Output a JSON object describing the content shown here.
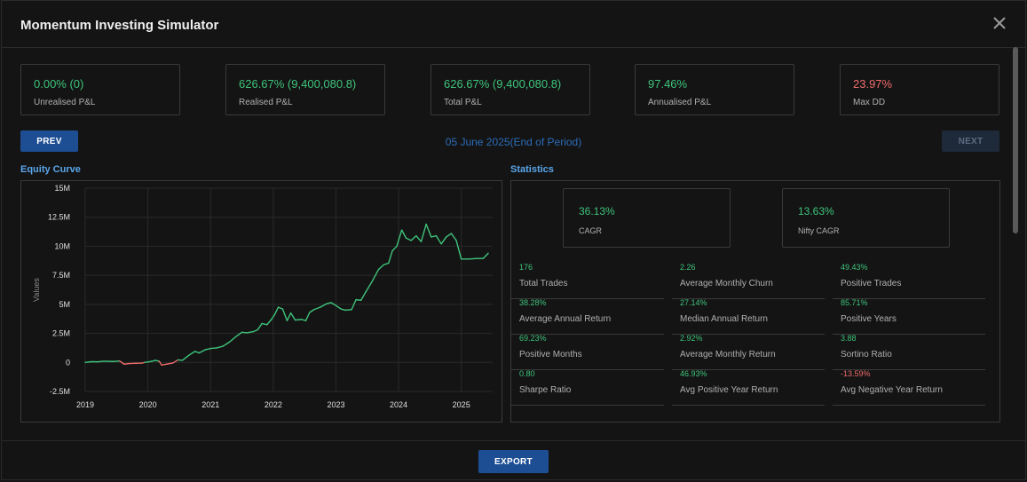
{
  "window": {
    "title": "Momentum Investing Simulator"
  },
  "summary": [
    {
      "value": "0.00% (0)",
      "label": "Unrealised P&L",
      "tone": "pos"
    },
    {
      "value": "626.67% (9,400,080.8)",
      "label": "Realised P&L",
      "tone": "pos"
    },
    {
      "value": "626.67% (9,400,080.8)",
      "label": "Total P&L",
      "tone": "pos"
    },
    {
      "value": "97.46%",
      "label": "Annualised P&L",
      "tone": "pos"
    },
    {
      "value": "23.97%",
      "label": "Max DD",
      "tone": "neg"
    }
  ],
  "nav": {
    "prev_label": "PREV",
    "next_label": "NEXT",
    "period_label": "05 June 2025(End of Period)"
  },
  "sections": {
    "equity_title": "Equity Curve",
    "stats_title": "Statistics"
  },
  "chart_data": {
    "type": "line",
    "title": "",
    "xlabel": "",
    "ylabel": "Values",
    "ylim": [
      -2500000,
      15000000
    ],
    "xlim": [
      2019.0,
      2025.5
    ],
    "grid": true,
    "y_ticks": [
      -2500000,
      0,
      2500000,
      5000000,
      7500000,
      10000000,
      12500000,
      15000000
    ],
    "y_tick_labels": [
      "-2.5M",
      "0",
      "2.5M",
      "5M",
      "7.5M",
      "10M",
      "12.5M",
      "15M"
    ],
    "x_ticks": [
      2019,
      2020,
      2021,
      2022,
      2023,
      2024,
      2025
    ],
    "x_tick_labels": [
      "2019",
      "2020",
      "2021",
      "2022",
      "2023",
      "2024",
      "2025"
    ],
    "colors": {
      "positive": "#3ec47b",
      "negative": "#f06b6b"
    },
    "points": [
      [
        2019.0,
        0
      ],
      [
        2019.1,
        60000
      ],
      [
        2019.2,
        50000
      ],
      [
        2019.3,
        100000
      ],
      [
        2019.45,
        80000
      ],
      [
        2019.55,
        120000
      ],
      [
        2019.62,
        -150000
      ],
      [
        2019.7,
        -100000
      ],
      [
        2019.8,
        -80000
      ],
      [
        2019.9,
        -60000
      ],
      [
        2019.95,
        0
      ],
      [
        2020.05,
        80000
      ],
      [
        2020.12,
        180000
      ],
      [
        2020.18,
        100000
      ],
      [
        2020.22,
        -230000
      ],
      [
        2020.3,
        -150000
      ],
      [
        2020.4,
        -50000
      ],
      [
        2020.48,
        220000
      ],
      [
        2020.55,
        180000
      ],
      [
        2020.65,
        600000
      ],
      [
        2020.75,
        950000
      ],
      [
        2020.82,
        820000
      ],
      [
        2020.92,
        1100000
      ],
      [
        2021.0,
        1200000
      ],
      [
        2021.1,
        1250000
      ],
      [
        2021.2,
        1400000
      ],
      [
        2021.3,
        1750000
      ],
      [
        2021.4,
        2200000
      ],
      [
        2021.5,
        2600000
      ],
      [
        2021.58,
        2550000
      ],
      [
        2021.68,
        2650000
      ],
      [
        2021.75,
        2800000
      ],
      [
        2021.82,
        3350000
      ],
      [
        2021.9,
        3250000
      ],
      [
        2021.97,
        3700000
      ],
      [
        2022.02,
        4100000
      ],
      [
        2022.08,
        4750000
      ],
      [
        2022.15,
        4600000
      ],
      [
        2022.22,
        3600000
      ],
      [
        2022.28,
        4250000
      ],
      [
        2022.35,
        3650000
      ],
      [
        2022.45,
        3700000
      ],
      [
        2022.52,
        3600000
      ],
      [
        2022.58,
        4300000
      ],
      [
        2022.65,
        4550000
      ],
      [
        2022.75,
        4750000
      ],
      [
        2022.85,
        5050000
      ],
      [
        2022.92,
        5150000
      ],
      [
        2023.0,
        4900000
      ],
      [
        2023.08,
        4600000
      ],
      [
        2023.15,
        4500000
      ],
      [
        2023.25,
        4550000
      ],
      [
        2023.32,
        5400000
      ],
      [
        2023.4,
        5350000
      ],
      [
        2023.48,
        6100000
      ],
      [
        2023.58,
        7000000
      ],
      [
        2023.68,
        8000000
      ],
      [
        2023.76,
        8400000
      ],
      [
        2023.84,
        8550000
      ],
      [
        2023.9,
        9600000
      ],
      [
        2023.97,
        10000000
      ],
      [
        2024.05,
        11400000
      ],
      [
        2024.12,
        10700000
      ],
      [
        2024.2,
        10500000
      ],
      [
        2024.28,
        10900000
      ],
      [
        2024.36,
        10400000
      ],
      [
        2024.44,
        11900000
      ],
      [
        2024.52,
        10800000
      ],
      [
        2024.6,
        10900000
      ],
      [
        2024.68,
        10200000
      ],
      [
        2024.76,
        10800000
      ],
      [
        2024.84,
        11100000
      ],
      [
        2024.92,
        10500000
      ],
      [
        2025.0,
        8900000
      ],
      [
        2025.12,
        8900000
      ],
      [
        2025.25,
        8950000
      ],
      [
        2025.35,
        8950000
      ],
      [
        2025.43,
        9400000
      ]
    ]
  },
  "stats": {
    "cagr": {
      "value": "36.13%",
      "label": "CAGR"
    },
    "nifty_cagr": {
      "value": "13.63%",
      "label": "Nifty CAGR"
    },
    "metrics": [
      {
        "value": "176",
        "label": "Total Trades",
        "tone": "pos"
      },
      {
        "value": "2.26",
        "label": "Average Monthly Churn",
        "tone": "pos"
      },
      {
        "value": "49.43%",
        "label": "Positive Trades",
        "tone": "pos"
      },
      {
        "value": "38.28%",
        "label": "Average Annual Return",
        "tone": "pos"
      },
      {
        "value": "27.14%",
        "label": "Median Annual Return",
        "tone": "pos"
      },
      {
        "value": "85.71%",
        "label": "Positive Years",
        "tone": "pos"
      },
      {
        "value": "69.23%",
        "label": "Positive Months",
        "tone": "pos"
      },
      {
        "value": "2.92%",
        "label": "Average Monthly Return",
        "tone": "pos"
      },
      {
        "value": "3.88",
        "label": "Sortino Ratio",
        "tone": "pos"
      },
      {
        "value": "0.80",
        "label": "Sharpe Ratio",
        "tone": "pos"
      },
      {
        "value": "46.93%",
        "label": "Avg Positive Year Return",
        "tone": "pos"
      },
      {
        "value": "-13.59%",
        "label": "Avg Negative Year Return",
        "tone": "neg"
      }
    ]
  },
  "footer": {
    "export_label": "EXPORT"
  }
}
